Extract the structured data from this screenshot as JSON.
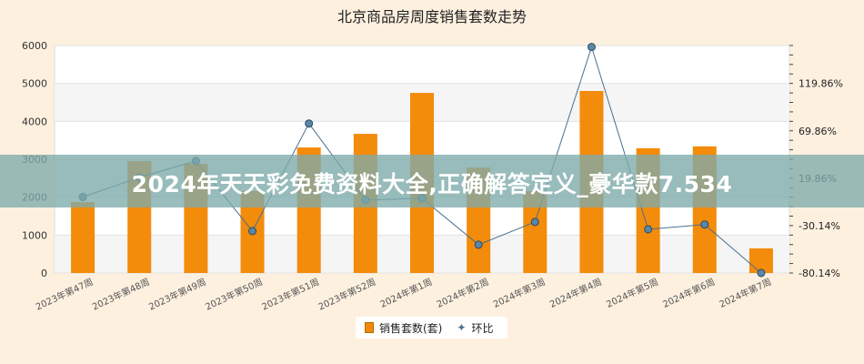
{
  "chart_data": {
    "type": "bar+line",
    "title": "北京商品房周度销售套数走势",
    "categories": [
      "2023年第47周",
      "2023年第48周",
      "2023年第49周",
      "2023年第50周",
      "2023年第51周",
      "2023年第52周",
      "2024年第1周",
      "2024年第2周",
      "2024年第3周",
      "2024年第4周",
      "2024年第5周",
      "2024年第6周",
      "2024年第7周"
    ],
    "series": [
      {
        "name": "销售套数(套)",
        "type": "bar",
        "axis": "left",
        "color": "#f38b0b",
        "values": [
          1870,
          2950,
          2880,
          2160,
          3310,
          3670,
          4750,
          2780,
          2160,
          4800,
          3290,
          3340,
          650
        ]
      },
      {
        "name": "环比",
        "type": "line",
        "axis": "right",
        "color": "#4a6f8f",
        "values": [
          0.0,
          20.8,
          38.1,
          -35.9,
          77.6,
          -3.2,
          -1.3,
          -50.3,
          -26.3,
          158.3,
          -34.0,
          -29.0,
          -80.1
        ]
      }
    ],
    "left_axis": {
      "ylim": [
        0,
        6000
      ],
      "ticks": [
        "0",
        "1000",
        "2000",
        "3000",
        "4000",
        "5000",
        "6000"
      ]
    },
    "right_axis": {
      "ylim": [
        -80.14,
        159.86
      ],
      "ticks": [
        "-80.14%",
        "-30.14%",
        "19.86%",
        "69.86%",
        "119.86%"
      ]
    },
    "legend": {
      "position": "bottom",
      "items": [
        "销售套数(套)",
        "环比"
      ]
    }
  },
  "overlay": {
    "banner_text": "2024年天天彩免费资料大全,正确解答定义_豪华款7.534"
  }
}
